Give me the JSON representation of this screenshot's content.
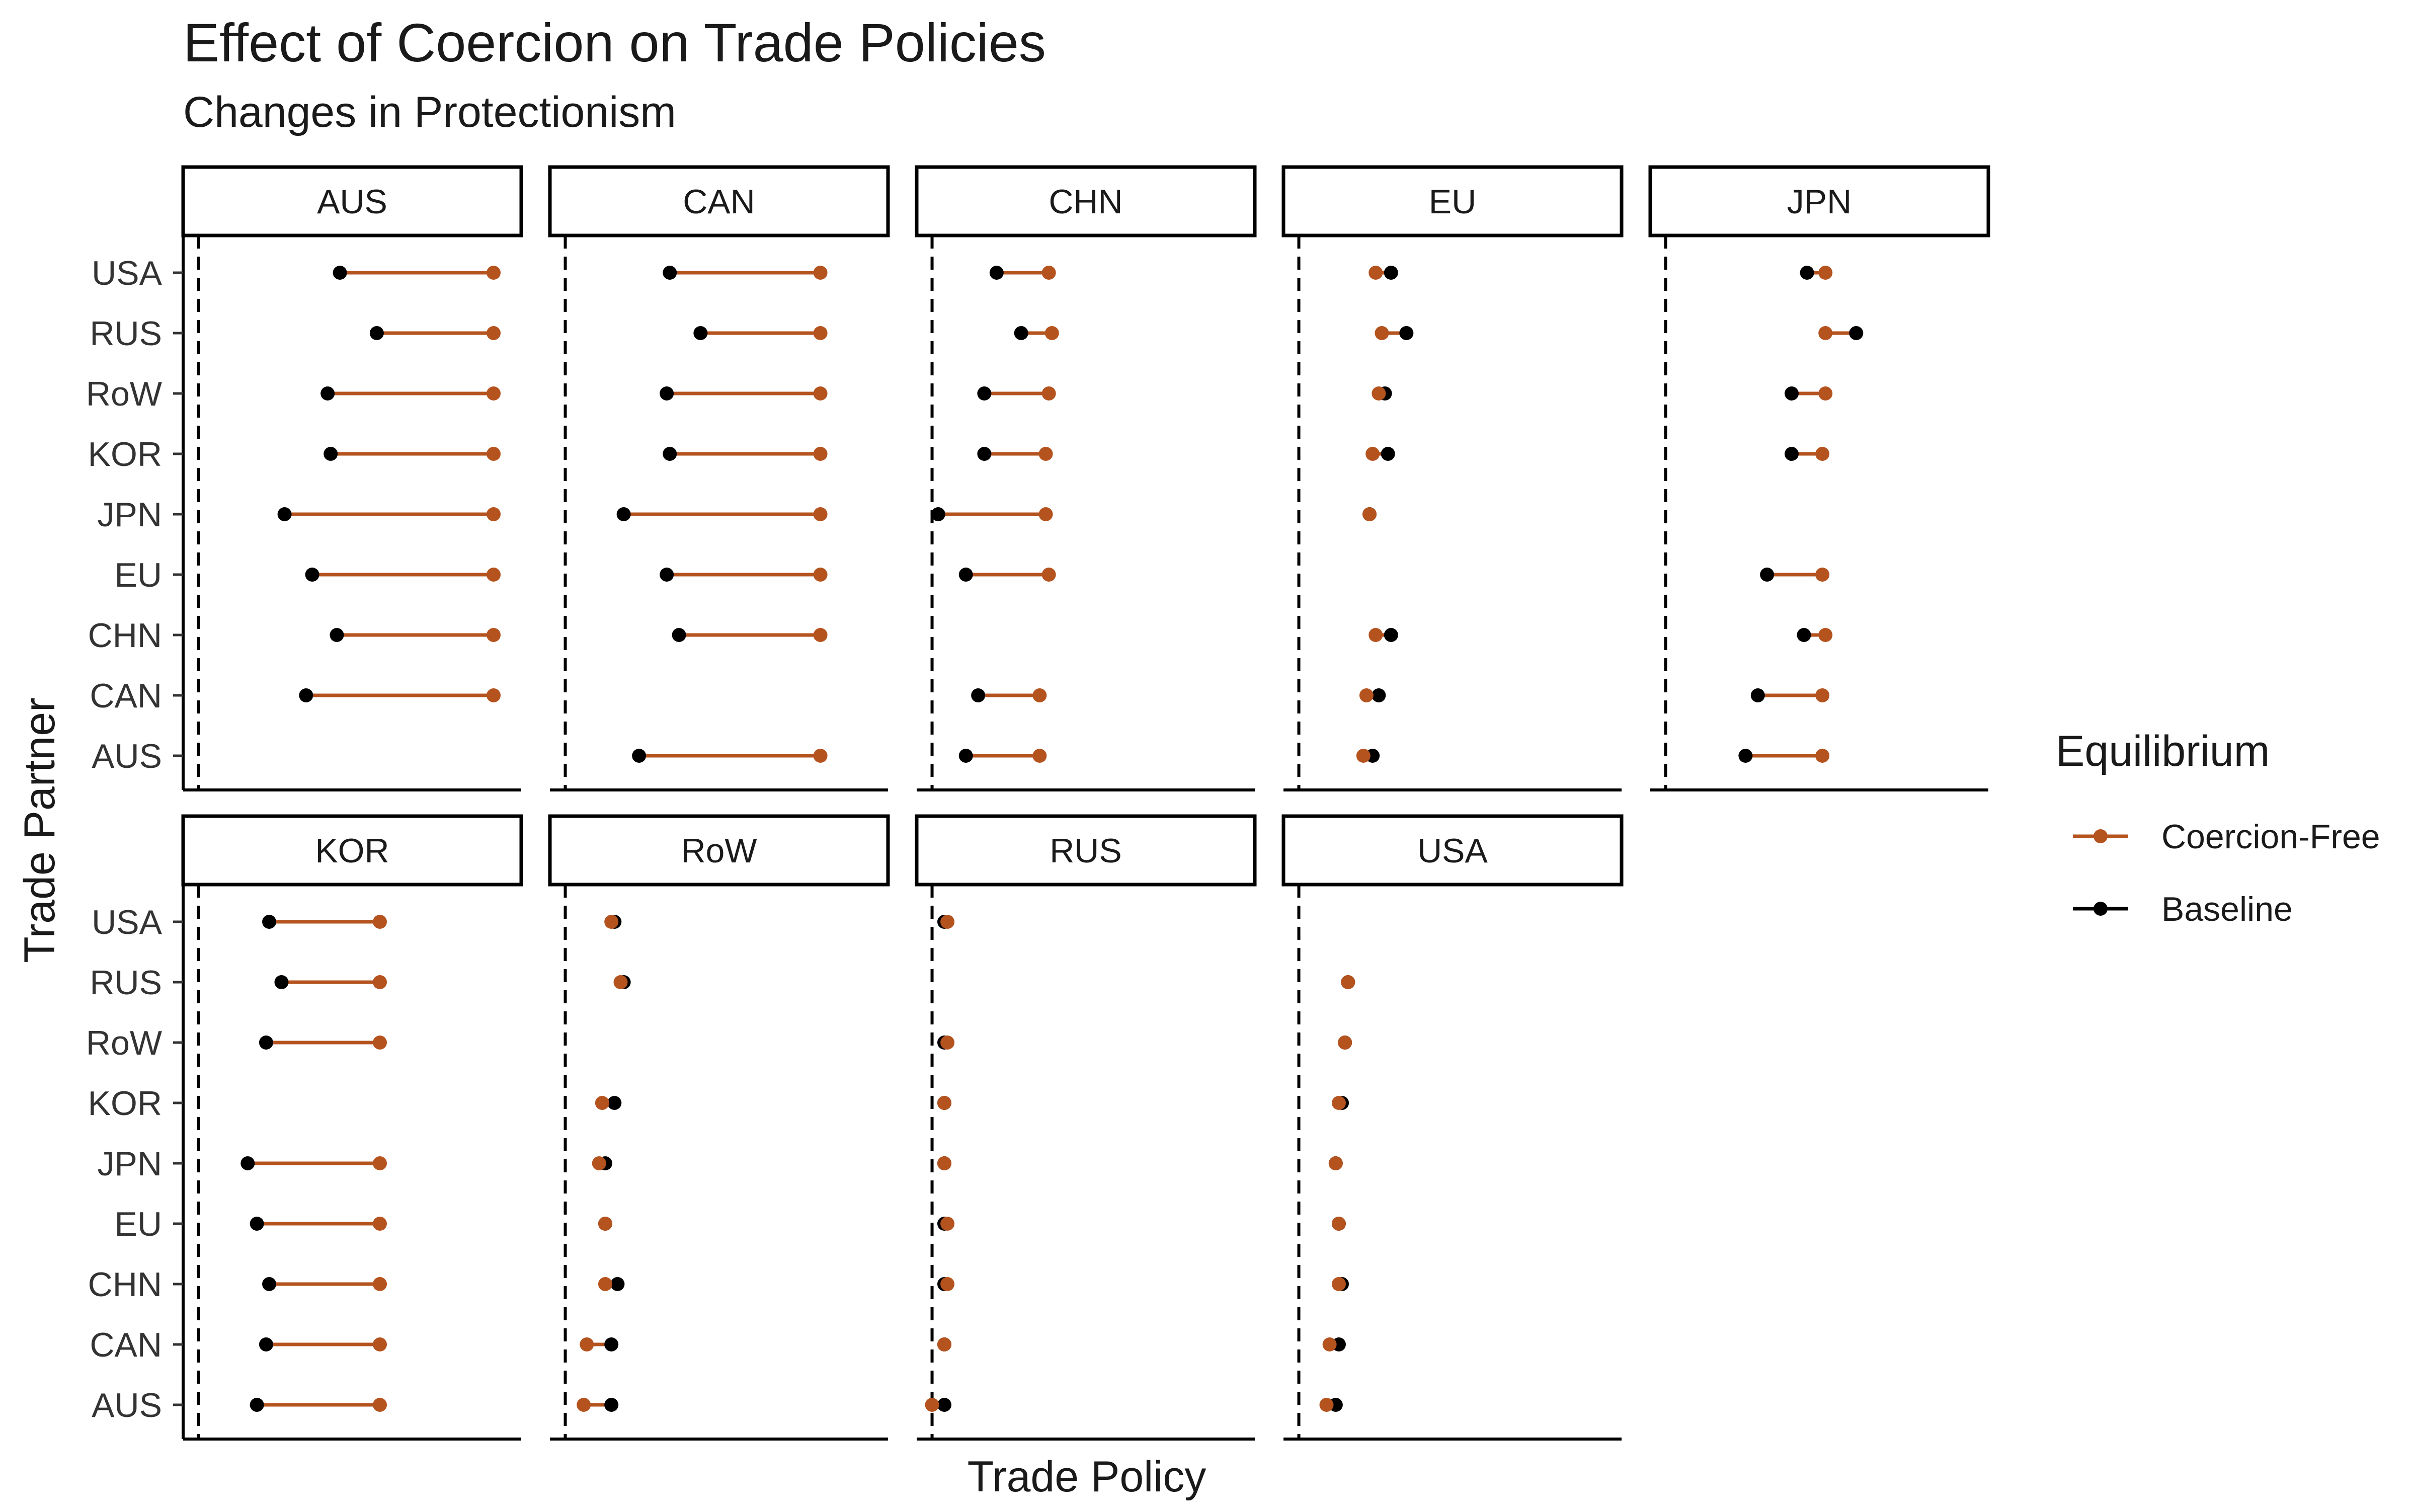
{
  "chart_data": {
    "type": "dumbbell",
    "title": "Effect of Coercion on Trade Policies",
    "subtitle": "Changes in Protectionism",
    "xlabel": "Trade Policy",
    "ylabel": "Trade Partner",
    "x_reference_line": 0,
    "xlim": [
      -0.05,
      1.05
    ],
    "grid": false,
    "legend": {
      "title": "Equilibrium",
      "position": "right",
      "entries": [
        {
          "key": "coercion_free",
          "label": "Coercion-Free",
          "color": "#B5531F"
        },
        {
          "key": "baseline",
          "label": "Baseline",
          "color": "#000000"
        }
      ]
    },
    "partners": [
      "USA",
      "RUS",
      "RoW",
      "KOR",
      "JPN",
      "EU",
      "CHN",
      "CAN",
      "AUS"
    ],
    "panels": [
      {
        "country": "AUS",
        "pairs": {
          "USA": [
            0.46,
            0.96
          ],
          "RUS": [
            0.58,
            0.96
          ],
          "RoW": [
            0.42,
            0.96
          ],
          "KOR": [
            0.43,
            0.96
          ],
          "JPN": [
            0.28,
            0.96
          ],
          "EU": [
            0.37,
            0.96
          ],
          "CHN": [
            0.45,
            0.96
          ],
          "CAN": [
            0.35,
            0.96
          ]
        }
      },
      {
        "country": "CAN",
        "pairs": {
          "USA": [
            0.34,
            0.83
          ],
          "RUS": [
            0.44,
            0.83
          ],
          "RoW": [
            0.33,
            0.83
          ],
          "KOR": [
            0.34,
            0.83
          ],
          "JPN": [
            0.19,
            0.83
          ],
          "EU": [
            0.33,
            0.83
          ],
          "CHN": [
            0.37,
            0.83
          ],
          "AUS": [
            0.24,
            0.83
          ]
        }
      },
      {
        "country": "CHN",
        "pairs": {
          "USA": [
            0.21,
            0.38
          ],
          "RUS": [
            0.29,
            0.39
          ],
          "RoW": [
            0.17,
            0.38
          ],
          "KOR": [
            0.17,
            0.37
          ],
          "JPN": [
            0.02,
            0.37
          ],
          "EU": [
            0.11,
            0.38
          ],
          "CAN": [
            0.15,
            0.35
          ],
          "AUS": [
            0.11,
            0.35
          ]
        }
      },
      {
        "country": "EU",
        "pairs": {
          "USA": [
            0.3,
            0.25
          ],
          "RUS": [
            0.35,
            0.27
          ],
          "RoW": [
            0.28,
            0.26
          ],
          "KOR": [
            0.29,
            0.24
          ],
          "JPN": [
            0.23,
            0.23
          ],
          "CHN": [
            0.3,
            0.25
          ],
          "CAN": [
            0.26,
            0.22
          ],
          "AUS": [
            0.24,
            0.21
          ]
        }
      },
      {
        "country": "JPN",
        "pairs": {
          "USA": [
            0.46,
            0.52
          ],
          "RUS": [
            0.62,
            0.52
          ],
          "RoW": [
            0.41,
            0.52
          ],
          "KOR": [
            0.41,
            0.51
          ],
          "EU": [
            0.33,
            0.51
          ],
          "CHN": [
            0.45,
            0.52
          ],
          "CAN": [
            0.3,
            0.51
          ],
          "AUS": [
            0.26,
            0.51
          ]
        }
      },
      {
        "country": "KOR",
        "pairs": {
          "USA": [
            0.23,
            0.59
          ],
          "RUS": [
            0.27,
            0.59
          ],
          "RoW": [
            0.22,
            0.59
          ],
          "JPN": [
            0.16,
            0.59
          ],
          "EU": [
            0.19,
            0.59
          ],
          "CHN": [
            0.23,
            0.59
          ],
          "CAN": [
            0.22,
            0.59
          ],
          "AUS": [
            0.19,
            0.59
          ]
        }
      },
      {
        "country": "RoW",
        "pairs": {
          "USA": [
            0.16,
            0.15
          ],
          "RUS": [
            0.19,
            0.18
          ],
          "KOR": [
            0.16,
            0.12
          ],
          "JPN": [
            0.13,
            0.11
          ],
          "EU": [
            0.13,
            0.13
          ],
          "CHN": [
            0.17,
            0.13
          ],
          "CAN": [
            0.15,
            0.07
          ],
          "AUS": [
            0.15,
            0.06
          ]
        }
      },
      {
        "country": "RUS",
        "pairs": {
          "USA": [
            0.04,
            0.05
          ],
          "RoW": [
            0.04,
            0.05
          ],
          "KOR": [
            0.04,
            0.04
          ],
          "JPN": [
            0.04,
            0.04
          ],
          "EU": [
            0.04,
            0.05
          ],
          "CHN": [
            0.04,
            0.05
          ],
          "CAN": [
            0.04,
            0.04
          ],
          "AUS": [
            0.04,
            0.0
          ]
        }
      },
      {
        "country": "USA",
        "pairs": {
          "RUS": [
            0.16,
            0.16
          ],
          "RoW": [
            0.15,
            0.15
          ],
          "KOR": [
            0.14,
            0.13
          ],
          "JPN": [
            0.12,
            0.12
          ],
          "EU": [
            0.13,
            0.13
          ],
          "CHN": [
            0.14,
            0.13
          ],
          "CAN": [
            0.13,
            0.1
          ],
          "AUS": [
            0.12,
            0.09
          ]
        }
      }
    ]
  }
}
